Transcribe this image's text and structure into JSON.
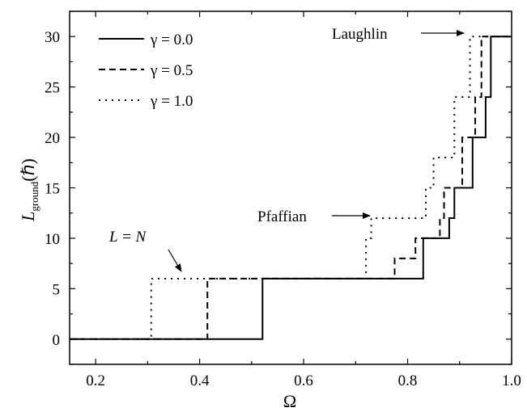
{
  "chart_data": {
    "type": "line",
    "xlabel": "Ω",
    "ylabel_main": "L",
    "ylabel_sub": "ground",
    "ylabel_unit": "(ℏ)",
    "xlim": [
      0.15,
      1.0
    ],
    "ylim": [
      -2.5,
      32.5
    ],
    "xticks": [
      0.2,
      0.4,
      0.6,
      0.8,
      1.0
    ],
    "xtick_labels": [
      "0.2",
      "0.4",
      "0.6",
      "0.8",
      "1.0"
    ],
    "yticks": [
      0,
      5,
      10,
      15,
      20,
      25,
      30
    ],
    "ytick_labels": [
      "0",
      "5",
      "10",
      "15",
      "20",
      "25",
      "30"
    ],
    "grid": false,
    "legend_position": "top-left",
    "series": [
      {
        "name": "γ = 0.0",
        "style": "solid",
        "x": [
          0.15,
          0.521,
          0.521,
          0.83,
          0.83,
          0.88,
          0.88,
          0.89,
          0.89,
          0.925,
          0.925,
          0.95,
          0.95,
          0.96,
          0.96,
          0.97,
          0.97,
          1.0
        ],
        "y": [
          0,
          0,
          6,
          6,
          10,
          10,
          12,
          12,
          15,
          15,
          20,
          20,
          24,
          24,
          30,
          30,
          30,
          30
        ]
      },
      {
        "name": "γ = 0.5",
        "style": "dashed",
        "x": [
          0.15,
          0.415,
          0.415,
          0.775,
          0.775,
          0.815,
          0.815,
          0.862,
          0.862,
          0.87,
          0.87,
          0.905,
          0.905,
          0.93,
          0.93,
          0.942,
          0.942,
          1.0
        ],
        "y": [
          0,
          0,
          6,
          6,
          8,
          8,
          10,
          10,
          12,
          12,
          15,
          15,
          20,
          20,
          24,
          24,
          30,
          30
        ]
      },
      {
        "name": "γ = 1.0",
        "style": "dotted",
        "x": [
          0.15,
          0.307,
          0.307,
          0.72,
          0.72,
          0.73,
          0.73,
          0.82,
          0.82,
          0.835,
          0.835,
          0.85,
          0.85,
          0.865,
          0.865,
          0.89,
          0.89,
          0.91,
          0.91,
          0.92,
          0.92,
          1.0
        ],
        "y": [
          0,
          0,
          6,
          6,
          10,
          10,
          12,
          12,
          12,
          12,
          15,
          15,
          18,
          18,
          18,
          18,
          24,
          24,
          24,
          24,
          30,
          30
        ]
      }
    ],
    "annotations": [
      {
        "text": "Laughlin",
        "arrow_to": [
          0.915,
          30
        ]
      },
      {
        "text": "Pfaffian",
        "arrow_to": [
          0.725,
          12
        ]
      },
      {
        "text_main": "L = N",
        "arrow_to": [
          0.33,
          6
        ]
      }
    ]
  }
}
